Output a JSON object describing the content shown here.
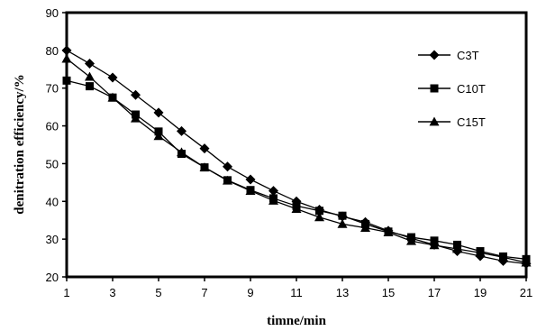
{
  "chart_data": {
    "type": "line",
    "title": "",
    "xlabel": "timne/min",
    "ylabel": "denitration efficiency/%",
    "xlim": [
      1,
      21
    ],
    "ylim": [
      20,
      90
    ],
    "x_ticks": [
      1,
      3,
      5,
      7,
      9,
      11,
      13,
      15,
      17,
      19,
      21
    ],
    "y_ticks": [
      20,
      30,
      40,
      50,
      60,
      70,
      80,
      90
    ],
    "grid": false,
    "legend_position": "top-right",
    "x": [
      1,
      2,
      3,
      4,
      5,
      6,
      7,
      8,
      9,
      10,
      11,
      12,
      13,
      14,
      15,
      16,
      17,
      18,
      19,
      20,
      21
    ],
    "series": [
      {
        "name": "C3T",
        "marker": "diamond",
        "values": [
          80.0,
          76.5,
          72.8,
          68.2,
          63.5,
          58.6,
          54.0,
          49.2,
          45.8,
          42.8,
          40.0,
          37.8,
          36.0,
          34.5,
          32.2,
          30.2,
          28.5,
          26.8,
          25.5,
          24.2,
          23.5
        ]
      },
      {
        "name": "C10T",
        "marker": "square",
        "values": [
          72.0,
          70.5,
          67.5,
          63.0,
          58.5,
          52.6,
          49.0,
          45.6,
          43.0,
          40.8,
          38.8,
          37.5,
          36.2,
          34.0,
          32.0,
          30.5,
          29.6,
          28.5,
          26.8,
          25.4,
          24.7
        ]
      },
      {
        "name": "C15T",
        "marker": "triangle",
        "values": [
          77.8,
          73.0,
          67.5,
          62.0,
          57.3,
          53.0,
          49.0,
          45.5,
          42.8,
          40.2,
          38.0,
          35.8,
          34.0,
          33.0,
          31.8,
          29.5,
          28.4,
          27.4,
          26.4,
          25.2,
          23.8
        ]
      }
    ]
  }
}
